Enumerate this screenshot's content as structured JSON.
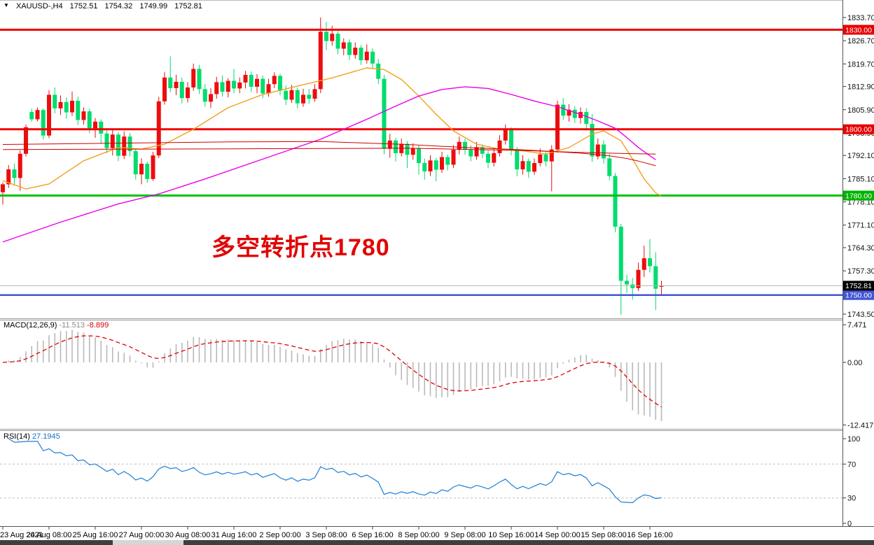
{
  "chart_data": {
    "type": "candlestick",
    "symbol": "XAUUSD-",
    "timeframe": "H4",
    "info_bar": {
      "symbol_period": "XAUUSD-,H4",
      "open": "1752.51",
      "high": "1754.32",
      "low": "1749.99",
      "close": "1752.81"
    },
    "icons": {
      "symbol_marker": "▼"
    },
    "annotation": {
      "text": "多空转折点1780",
      "color": "#e10505"
    },
    "bull_color": "#ec0d0d",
    "bear_color": "#00dc6e",
    "y_axis_labels": [
      [
        "1833.70",
        1833.7
      ],
      [
        "1826.70",
        1826.7
      ],
      [
        "1819.70",
        1819.7
      ],
      [
        "1812.90",
        1812.9
      ],
      [
        "1805.90",
        1805.9
      ],
      [
        "1798.90",
        1798.9
      ],
      [
        "1792.10",
        1792.1
      ],
      [
        "1785.10",
        1785.1
      ],
      [
        "1778.10",
        1778.1
      ],
      [
        "1771.10",
        1771.1
      ],
      [
        "1764.30",
        1764.3
      ],
      [
        "1757.30",
        1757.3
      ],
      [
        "1743.50",
        1743.5
      ]
    ],
    "x_ticks": [
      {
        "label": "23 Aug 2021",
        "index": 0
      },
      {
        "label": "24 Aug 08:00",
        "index": 8
      },
      {
        "label": "25 Aug 16:00",
        "index": 16
      },
      {
        "label": "27 Aug 00:00",
        "index": 24
      },
      {
        "label": "30 Aug 08:00",
        "index": 32
      },
      {
        "label": "31 Aug 16:00",
        "index": 40
      },
      {
        "label": "2 Sep 00:00",
        "index": 48
      },
      {
        "label": "3 Sep 08:00",
        "index": 56
      },
      {
        "label": "6 Sep 16:00",
        "index": 64
      },
      {
        "label": "8 Sep 00:00",
        "index": 72
      },
      {
        "label": "9 Sep 08:00",
        "index": 80
      },
      {
        "label": "10 Sep 16:00",
        "index": 88
      },
      {
        "label": "14 Sep 00:00",
        "index": 96
      },
      {
        "label": "15 Sep 08:00",
        "index": 104
      },
      {
        "label": "16 Sep 16:00",
        "index": 112
      }
    ],
    "price_lines": [
      {
        "name": "resistance-1830",
        "price": 1830.0,
        "color": "#f00505",
        "width": 3,
        "tag": "1830.00",
        "tag_bg": "#e80000"
      },
      {
        "name": "resistance-1800",
        "price": 1800.0,
        "color": "#f00505",
        "width": 3,
        "tag": "1800.00",
        "tag_bg": "#e80000"
      },
      {
        "name": "support-1780",
        "price": 1780.0,
        "color": "#00c400",
        "width": 3,
        "tag": "1780.00",
        "tag_bg": "#00b400"
      },
      {
        "name": "support-1750",
        "price": 1750.0,
        "color": "#4155d4",
        "width": 2.5,
        "tag": "1750.00",
        "tag_bg": "#4155d4"
      }
    ],
    "current_price": {
      "price": 1752.81,
      "line_color": "#b4b4b4",
      "tag": "1752.81",
      "tag_bg": "#000000"
    },
    "ma_lines": [
      {
        "name": "ma-fast-orange",
        "color": "#f0a11b",
        "width": 1.4,
        "points": [
          [
            0,
            1784.5
          ],
          [
            4,
            1782.0
          ],
          [
            8,
            1783.5
          ],
          [
            14,
            1790.5
          ],
          [
            20,
            1794.5
          ],
          [
            24,
            1794.0
          ],
          [
            28,
            1795.5
          ],
          [
            33,
            1800.0
          ],
          [
            39,
            1806.5
          ],
          [
            45,
            1810.5
          ],
          [
            51,
            1813.0
          ],
          [
            57,
            1815.5
          ],
          [
            63,
            1818.5
          ],
          [
            66,
            1818.0
          ],
          [
            69,
            1815.0
          ],
          [
            72,
            1810.0
          ],
          [
            75,
            1804.5
          ],
          [
            78,
            1799.5
          ],
          [
            82,
            1795.5
          ],
          [
            86,
            1794.0
          ],
          [
            90,
            1793.5
          ],
          [
            94,
            1792.5
          ],
          [
            98,
            1794.5
          ],
          [
            102,
            1798.5
          ],
          [
            104,
            1799.5
          ],
          [
            107,
            1796.5
          ],
          [
            109,
            1791.0
          ],
          [
            111,
            1785.0
          ],
          [
            113,
            1780.8
          ],
          [
            114,
            1779.8
          ]
        ]
      },
      {
        "name": "ma-mid-magenta",
        "color": "#ea00ea",
        "width": 1.4,
        "points": [
          [
            0,
            1766.0
          ],
          [
            10,
            1772.0
          ],
          [
            20,
            1777.5
          ],
          [
            27,
            1780.5
          ],
          [
            35,
            1785.0
          ],
          [
            45,
            1791.0
          ],
          [
            55,
            1797.0
          ],
          [
            63,
            1803.0
          ],
          [
            68,
            1807.0
          ],
          [
            72,
            1810.0
          ],
          [
            76,
            1812.0
          ],
          [
            80,
            1812.8
          ],
          [
            84,
            1812.3
          ],
          [
            88,
            1810.5
          ],
          [
            92,
            1808.5
          ],
          [
            96,
            1806.8
          ],
          [
            100,
            1804.5
          ],
          [
            103,
            1802.5
          ],
          [
            106,
            1800.3
          ],
          [
            108,
            1797.5
          ],
          [
            110,
            1794.5
          ],
          [
            112,
            1792.0
          ],
          [
            113,
            1790.8
          ]
        ]
      },
      {
        "name": "ma-slow-red",
        "color": "#d40000",
        "width": 1,
        "points": [
          [
            0,
            1795.4
          ],
          [
            20,
            1795.8
          ],
          [
            40,
            1796.2
          ],
          [
            55,
            1796.3
          ],
          [
            70,
            1795.4
          ],
          [
            80,
            1794.5
          ],
          [
            90,
            1793.8
          ],
          [
            100,
            1792.8
          ],
          [
            105,
            1792.0
          ],
          [
            108,
            1791.2
          ],
          [
            110,
            1790.4
          ],
          [
            113,
            1789.0
          ]
        ]
      },
      {
        "name": "ma-flat-red",
        "color": "#d40000",
        "width": 1,
        "points": [
          [
            0,
            1793.9
          ],
          [
            40,
            1794.1
          ],
          [
            70,
            1794.3
          ],
          [
            90,
            1793.6
          ],
          [
            100,
            1793.0
          ],
          [
            107,
            1792.7
          ],
          [
            113,
            1792.5
          ]
        ]
      }
    ],
    "candles": [
      [
        1781.0,
        1784.0,
        1777.3,
        1783.4
      ],
      [
        1783.4,
        1789.2,
        1782.3,
        1787.9
      ],
      [
        1787.9,
        1789.6,
        1783.2,
        1785.3
      ],
      [
        1785.3,
        1793.6,
        1781.4,
        1792.6
      ],
      [
        1792.6,
        1801.4,
        1791.8,
        1800.6
      ],
      [
        1805.2,
        1806.2,
        1802.2,
        1803.0
      ],
      [
        1803.0,
        1806.6,
        1802.4,
        1805.8
      ],
      [
        1805.8,
        1806.3,
        1796.9,
        1798.1
      ],
      [
        1798.1,
        1811.8,
        1797.3,
        1810.4
      ],
      [
        1810.4,
        1812.6,
        1804.8,
        1806.3
      ],
      [
        1806.3,
        1810.2,
        1804.3,
        1808.2
      ],
      [
        1808.2,
        1809.6,
        1803.2,
        1805.1
      ],
      [
        1805.1,
        1811.4,
        1804.0,
        1808.6
      ],
      [
        1808.6,
        1809.8,
        1801.3,
        1802.8
      ],
      [
        1802.8,
        1806.6,
        1801.4,
        1805.4
      ],
      [
        1805.4,
        1806.2,
        1798.8,
        1800.3
      ],
      [
        1800.3,
        1803.4,
        1797.4,
        1802.3
      ],
      [
        1802.3,
        1803.0,
        1795.6,
        1798.7
      ],
      [
        1798.7,
        1799.6,
        1792.8,
        1794.3
      ],
      [
        1794.3,
        1800.2,
        1792.1,
        1798.4
      ],
      [
        1798.4,
        1799.1,
        1790.4,
        1792.0
      ],
      [
        1792.0,
        1799.4,
        1791.0,
        1797.8
      ],
      [
        1797.8,
        1798.9,
        1791.8,
        1793.4
      ],
      [
        1793.4,
        1794.2,
        1784.8,
        1786.4
      ],
      [
        1786.4,
        1791.2,
        1783.4,
        1789.6
      ],
      [
        1789.6,
        1790.2,
        1783.8,
        1785.0
      ],
      [
        1785.0,
        1793.2,
        1784.4,
        1792.1
      ],
      [
        1792.1,
        1809.8,
        1791.3,
        1808.4
      ],
      [
        1808.4,
        1817.2,
        1807.4,
        1815.6
      ],
      [
        1815.6,
        1822.0,
        1811.2,
        1812.4
      ],
      [
        1812.4,
        1816.4,
        1810.3,
        1814.3
      ],
      [
        1814.3,
        1815.6,
        1807.8,
        1809.4
      ],
      [
        1809.4,
        1814.2,
        1808.1,
        1812.6
      ],
      [
        1812.6,
        1819.8,
        1811.6,
        1818.2
      ],
      [
        1818.2,
        1819.4,
        1810.6,
        1812.1
      ],
      [
        1812.1,
        1813.6,
        1806.8,
        1808.3
      ],
      [
        1808.3,
        1812.4,
        1806.4,
        1810.6
      ],
      [
        1810.6,
        1815.8,
        1809.2,
        1814.2
      ],
      [
        1814.2,
        1816.2,
        1809.8,
        1811.3
      ],
      [
        1811.3,
        1815.4,
        1809.6,
        1814.6
      ],
      [
        1814.6,
        1818.2,
        1810.8,
        1812.3
      ],
      [
        1812.3,
        1815.6,
        1810.9,
        1814.1
      ],
      [
        1814.1,
        1817.6,
        1812.3,
        1816.4
      ],
      [
        1816.4,
        1817.4,
        1811.3,
        1812.8
      ],
      [
        1812.8,
        1816.6,
        1810.9,
        1815.2
      ],
      [
        1815.2,
        1816.2,
        1809.4,
        1810.8
      ],
      [
        1810.8,
        1815.2,
        1809.8,
        1813.6
      ],
      [
        1813.6,
        1817.2,
        1812.4,
        1816.1
      ],
      [
        1816.1,
        1816.8,
        1810.2,
        1811.6
      ],
      [
        1811.6,
        1813.2,
        1807.3,
        1808.9
      ],
      [
        1808.9,
        1813.4,
        1807.9,
        1811.8
      ],
      [
        1811.8,
        1812.6,
        1806.3,
        1807.8
      ],
      [
        1807.8,
        1812.2,
        1806.8,
        1810.4
      ],
      [
        1810.4,
        1812.2,
        1807.6,
        1809.2
      ],
      [
        1809.2,
        1813.6,
        1808.3,
        1812.1
      ],
      [
        1812.1,
        1833.7,
        1810.9,
        1829.4
      ],
      [
        1829.4,
        1832.4,
        1823.8,
        1826.6
      ],
      [
        1826.6,
        1831.2,
        1825.2,
        1828.8
      ],
      [
        1828.8,
        1829.6,
        1822.6,
        1824.3
      ],
      [
        1824.3,
        1827.4,
        1822.3,
        1826.2
      ],
      [
        1826.2,
        1827.1,
        1820.8,
        1822.4
      ],
      [
        1822.4,
        1826.2,
        1821.2,
        1824.6
      ],
      [
        1824.6,
        1825.4,
        1819.4,
        1820.8
      ],
      [
        1820.8,
        1825.6,
        1819.8,
        1823.4
      ],
      [
        1823.4,
        1824.4,
        1818.2,
        1819.8
      ],
      [
        1819.8,
        1821.2,
        1813.6,
        1815.2
      ],
      [
        1815.2,
        1816.4,
        1792.4,
        1794.1
      ],
      [
        1794.1,
        1798.6,
        1791.4,
        1796.6
      ],
      [
        1796.6,
        1797.4,
        1790.3,
        1792.8
      ],
      [
        1792.8,
        1797.2,
        1791.8,
        1795.6
      ],
      [
        1795.6,
        1796.4,
        1788.3,
        1792.3
      ],
      [
        1792.3,
        1795.8,
        1790.8,
        1794.2
      ],
      [
        1794.2,
        1795.1,
        1786.3,
        1789.8
      ],
      [
        1789.8,
        1791.2,
        1784.8,
        1787.3
      ],
      [
        1787.3,
        1792.2,
        1785.9,
        1790.6
      ],
      [
        1790.6,
        1791.4,
        1784.3,
        1787.8
      ],
      [
        1787.8,
        1793.2,
        1786.8,
        1791.6
      ],
      [
        1791.6,
        1792.4,
        1787.6,
        1789.3
      ],
      [
        1789.3,
        1795.2,
        1788.3,
        1793.8
      ],
      [
        1793.8,
        1797.8,
        1792.4,
        1796.2
      ],
      [
        1796.2,
        1797.2,
        1792.3,
        1793.8
      ],
      [
        1793.8,
        1795.2,
        1790.3,
        1791.8
      ],
      [
        1791.8,
        1796.2,
        1790.8,
        1794.6
      ],
      [
        1794.6,
        1795.4,
        1791.3,
        1792.6
      ],
      [
        1792.6,
        1793.6,
        1788.2,
        1789.9
      ],
      [
        1789.9,
        1794.2,
        1788.8,
        1792.8
      ],
      [
        1792.8,
        1798.2,
        1791.8,
        1796.6
      ],
      [
        1796.6,
        1801.4,
        1795.4,
        1799.8
      ],
      [
        1799.8,
        1800.6,
        1792.1,
        1793.8
      ],
      [
        1793.8,
        1794.6,
        1785.8,
        1787.9
      ],
      [
        1787.9,
        1792.2,
        1786.3,
        1790.4
      ],
      [
        1790.4,
        1791.2,
        1785.3,
        1787.2
      ],
      [
        1787.2,
        1791.2,
        1786.2,
        1789.8
      ],
      [
        1789.8,
        1794.2,
        1788.8,
        1792.4
      ],
      [
        1792.4,
        1793.4,
        1788.8,
        1790.3
      ],
      [
        1790.3,
        1795.2,
        1781.3,
        1793.9
      ],
      [
        1793.9,
        1808.6,
        1792.9,
        1807.4
      ],
      [
        1807.4,
        1809.4,
        1802.8,
        1804.1
      ],
      [
        1804.1,
        1807.6,
        1802.3,
        1805.9
      ],
      [
        1805.9,
        1807.0,
        1801.9,
        1803.4
      ],
      [
        1803.4,
        1806.6,
        1801.7,
        1805.2
      ],
      [
        1805.2,
        1806.4,
        1799.6,
        1801.6
      ],
      [
        1801.6,
        1804.6,
        1790.2,
        1791.8
      ],
      [
        1791.8,
        1797.2,
        1790.9,
        1795.4
      ],
      [
        1795.4,
        1796.6,
        1789.6,
        1791.2
      ],
      [
        1791.2,
        1792.6,
        1784.6,
        1785.9
      ],
      [
        1785.9,
        1786.8,
        1768.9,
        1770.6
      ],
      [
        1770.6,
        1771.4,
        1744.1,
        1754.3
      ],
      [
        1754.3,
        1756.2,
        1750.6,
        1753.2
      ],
      [
        1753.2,
        1755.2,
        1748.6,
        1752.1
      ],
      [
        1752.1,
        1759.8,
        1751.2,
        1757.6
      ],
      [
        1757.6,
        1764.9,
        1755.4,
        1761.1
      ],
      [
        1761.1,
        1766.9,
        1756.8,
        1758.7
      ],
      [
        1758.7,
        1762.9,
        1745.5,
        1751.9
      ],
      [
        1752.51,
        1754.32,
        1749.99,
        1752.81
      ]
    ],
    "macd": {
      "label": "MACD(12,26,9)",
      "main_value": "-11.513",
      "signal_value": "-8.899",
      "fast": 12,
      "slow": 26,
      "signal": 9,
      "axis_labels": [
        "7.471",
        "0.00",
        "-12.417"
      ],
      "axis_values": [
        7.471,
        0,
        -12.417
      ],
      "histogram_color": "#b9b9b9",
      "signal_color": "#e00000"
    },
    "rsi": {
      "label": "RSI(14)",
      "value": "27.1945",
      "period": 14,
      "axis_labels": [
        [
          "100",
          100
        ],
        [
          "70",
          70
        ],
        [
          "30",
          30
        ],
        [
          "0",
          0
        ]
      ],
      "levels": [
        70,
        30
      ],
      "line_color": "#1e7fd8",
      "level_color": "#c0c0c0"
    }
  }
}
